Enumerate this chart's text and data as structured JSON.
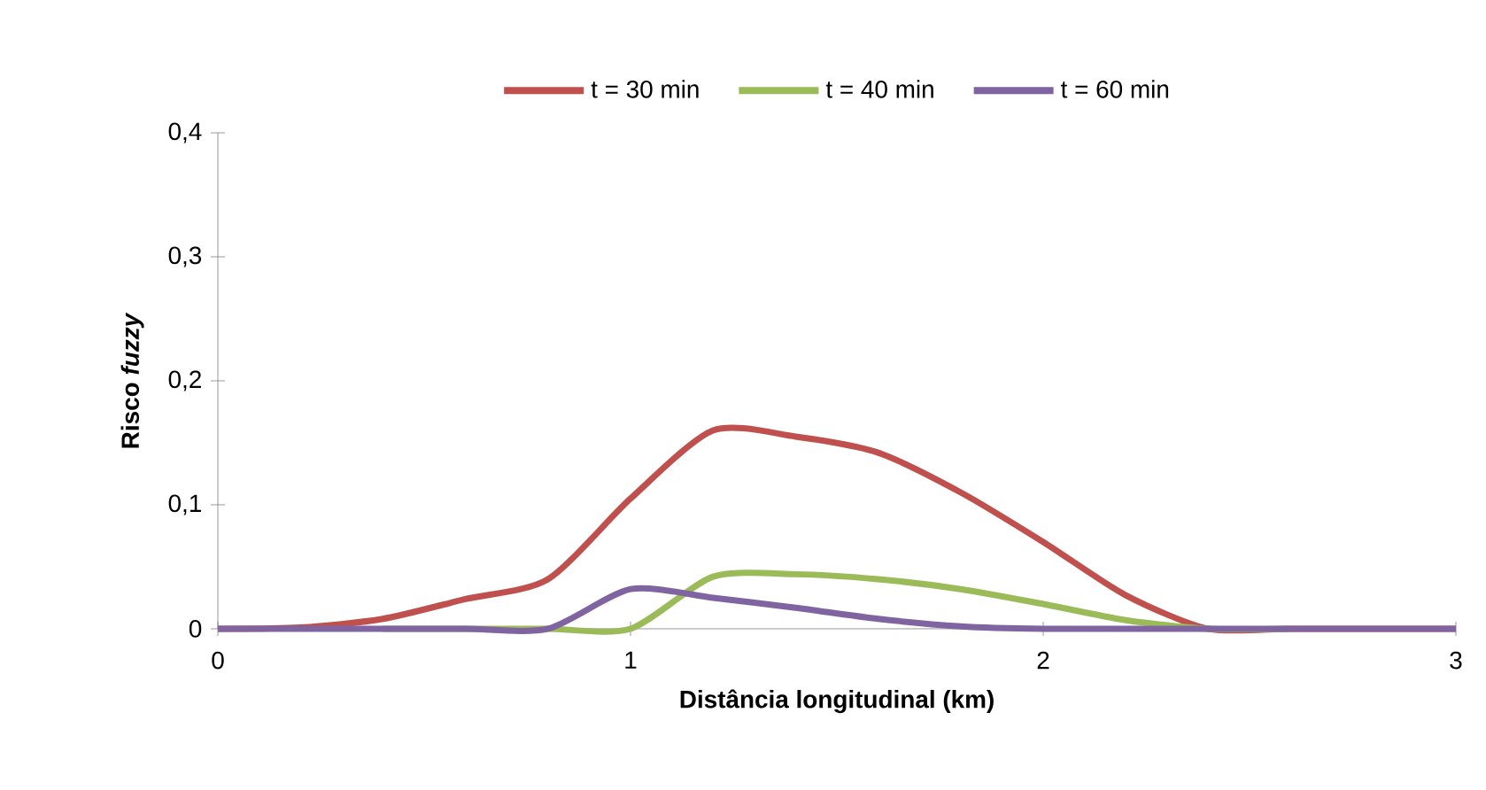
{
  "chart_data": {
    "type": "line",
    "xlabel": "Distância longitudinal (km)",
    "ylabel": "Risco *fuzzy*",
    "xlim": [
      0,
      3
    ],
    "xticks": [
      0,
      1,
      2,
      3
    ],
    "ylim": [
      0,
      0.4
    ],
    "yticks": [
      0,
      {
        "value": 0.1,
        "label": "0,1"
      },
      {
        "value": 0.2,
        "label": "0,2"
      },
      {
        "value": 0.3,
        "label": "0,3"
      },
      {
        "value": 0.4,
        "label": "0,4"
      }
    ],
    "x": [
      0,
      0.2,
      0.4,
      0.6,
      0.8,
      1.0,
      1.2,
      1.4,
      1.6,
      1.8,
      2.0,
      2.2,
      2.4,
      2.6,
      2.8,
      3.0
    ],
    "series": [
      {
        "name": "t = 30 min",
        "color": "#c0504d",
        "values": [
          0,
          0.001,
          0.008,
          0.024,
          0.04,
          0.105,
          0.16,
          0.155,
          0.142,
          0.11,
          0.07,
          0.027,
          0,
          0,
          0,
          0
        ]
      },
      {
        "name": "t = 40 min",
        "color": "#9bbb59",
        "values": [
          null,
          null,
          0,
          0,
          0,
          0,
          0.042,
          0.044,
          0.04,
          0.032,
          0.02,
          0.007,
          0,
          0,
          null,
          null
        ]
      },
      {
        "name": "t = 60 min",
        "color": "#8064a2",
        "values": [
          0,
          0,
          0,
          0,
          0,
          0.032,
          0.025,
          0.017,
          0.008,
          0.002,
          0,
          0,
          0,
          0,
          0,
          0
        ]
      }
    ],
    "legend": "top",
    "grid": false,
    "marker": "none",
    "line_style": "solid"
  }
}
